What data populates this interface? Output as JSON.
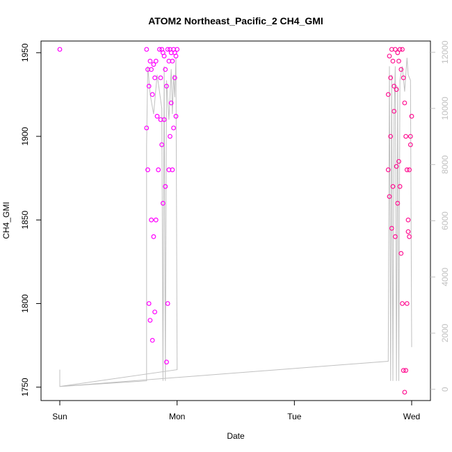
{
  "chart_data": {
    "type": "scatter",
    "title": "ATOM2 Northeast_Pacific_2 CH4_GMI",
    "xlabel": "Date",
    "ylabel": "CH4_GMI",
    "y2label": "",
    "x_ticks": [
      "Sun",
      "Mon",
      "Tue",
      "Wed"
    ],
    "x_tick_days": [
      0,
      1,
      2,
      3
    ],
    "xlim_days": [
      -0.16,
      3.16
    ],
    "ylim": [
      1742,
      1957
    ],
    "y_ticks": [
      1750,
      1800,
      1850,
      1900,
      1950
    ],
    "y2lim": [
      -400,
      12400
    ],
    "y2_ticks": [
      0,
      2000,
      4000,
      6000,
      8000,
      10000,
      12000
    ],
    "grid": false,
    "colors": {
      "ch4_magenta": "#ff00ff",
      "ch4_pink": "#ff1493",
      "altitude_line": "#c0c0c0",
      "axes": "#000000"
    },
    "series": [
      {
        "role": "ch4-early",
        "color": "#ff00ff",
        "x": [
          0.0,
          0.74,
          0.74,
          0.75,
          0.75,
          0.76,
          0.76,
          0.77,
          0.77,
          0.78,
          0.78,
          0.79,
          0.79,
          0.8,
          0.8,
          0.81,
          0.81,
          0.82,
          0.82,
          0.83,
          0.84,
          0.85,
          0.86,
          0.86,
          0.87,
          0.87,
          0.88,
          0.88,
          0.89,
          0.89,
          0.9,
          0.9,
          0.91,
          0.91,
          0.92,
          0.92,
          0.93,
          0.93,
          0.94,
          0.94,
          0.95,
          0.95,
          0.96,
          0.96,
          0.97,
          0.97,
          0.98,
          0.98,
          0.99,
          0.99,
          1.0
        ],
        "y": [
          1952,
          1952,
          1905,
          1940,
          1880,
          1930,
          1800,
          1945,
          1790,
          1940,
          1850,
          1925,
          1778,
          1943,
          1840,
          1935,
          1795,
          1945,
          1850,
          1912,
          1880,
          1952,
          1935,
          1910,
          1952,
          1895,
          1950,
          1860,
          1948,
          1910,
          1940,
          1870,
          1930,
          1765,
          1952,
          1800,
          1945,
          1880,
          1952,
          1900,
          1950,
          1920,
          1945,
          1880,
          1952,
          1905,
          1950,
          1935,
          1948,
          1912,
          1952
        ]
      },
      {
        "role": "ch4-late",
        "color": "#ff1493",
        "x": [
          2.8,
          2.8,
          2.81,
          2.81,
          2.82,
          2.82,
          2.83,
          2.83,
          2.84,
          2.84,
          2.85,
          2.85,
          2.86,
          2.86,
          2.87,
          2.87,
          2.88,
          2.88,
          2.89,
          2.89,
          2.9,
          2.9,
          2.91,
          2.91,
          2.92,
          2.92,
          2.93,
          2.93,
          2.94,
          2.94,
          2.95,
          2.95,
          2.96,
          2.96,
          2.97,
          2.97,
          2.98,
          2.98,
          2.99,
          2.99,
          3.0
        ],
        "y": [
          1925,
          1880,
          1948,
          1864,
          1935,
          1900,
          1952,
          1845,
          1945,
          1870,
          1930,
          1915,
          1952,
          1840,
          1928,
          1882,
          1950,
          1860,
          1945,
          1885,
          1952,
          1870,
          1940,
          1830,
          1952,
          1800,
          1935,
          1760,
          1920,
          1747,
          1900,
          1760,
          1880,
          1800,
          1850,
          1843,
          1880,
          1840,
          1900,
          1895,
          1912
        ]
      },
      {
        "role": "altitude",
        "color": "#c0c0c0",
        "axis": "right",
        "x": [
          0.0,
          0.0,
          0.74,
          0.74,
          0.75,
          0.77,
          0.8,
          0.83,
          0.87,
          0.88,
          0.89,
          0.9,
          0.91,
          0.93,
          0.95,
          0.96,
          0.97,
          0.98,
          0.99,
          1.0,
          1.0,
          0.0,
          2.8,
          2.81,
          2.82,
          2.83,
          2.84,
          2.85,
          2.86,
          2.87,
          2.88,
          2.89,
          2.9,
          2.92,
          2.94,
          2.96,
          2.97,
          2.99,
          3.0
        ],
        "y": [
          700,
          100,
          300,
          8700,
          11500,
          10500,
          9800,
          11200,
          10000,
          300,
          11500,
          300,
          11000,
          9600,
          11400,
          9800,
          11200,
          10400,
          11800,
          900,
          700,
          100,
          1000,
          11500,
          300,
          11200,
          300,
          9800,
          11500,
          300,
          10800,
          300,
          11000,
          11500,
          10600,
          11800,
          11200,
          11000,
          1500
        ]
      }
    ]
  }
}
